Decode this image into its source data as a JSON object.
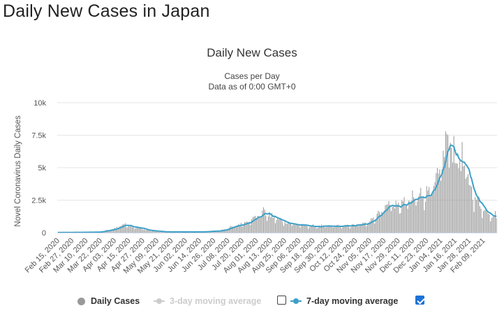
{
  "page": {
    "title": "Daily New Cases in Japan"
  },
  "chart_data": {
    "type": "bar",
    "title": "Daily New Cases",
    "subtitle": "Cases per Day",
    "subtitle2": "Data as of 0:00 GMT+0",
    "ylabel": "Novel Coronavirus Daily Cases",
    "xlabel": "",
    "ylim": [
      0,
      10000
    ],
    "yticks": [
      0,
      2500,
      5000,
      7500,
      10000
    ],
    "ytick_labels": [
      "0",
      "2.5k",
      "5k",
      "7.5k",
      "10k"
    ],
    "grid": "horizontal",
    "start_date": "2020-02-15",
    "end_date": "2021-02-20",
    "xtick_labels": [
      "Feb 15, 2020",
      "Feb 27, 2020",
      "Mar 10, 2020",
      "Mar 22, 2020",
      "Apr 03, 2020",
      "Apr 15, 2020",
      "Apr 27, 2020",
      "May 09, 2020",
      "May 21, 2020",
      "Jun 02, 2020",
      "Jun 14, 2020",
      "Jun 26, 2020",
      "Jul 08, 2020",
      "Jul 20, 2020",
      "Aug 01, 2020",
      "Aug 13, 2020",
      "Aug 25, 2020",
      "Sep 06, 2020",
      "Sep 18, 2020",
      "Sep 30, 2020",
      "Oct 12, 2020",
      "Oct 24, 2020",
      "Nov 05, 2020",
      "Nov 17, 2020",
      "Nov 29, 2020",
      "Dec 11, 2020",
      "Dec 23, 2020",
      "Jan 04, 2021",
      "Jan 16, 2021",
      "Jan 28, 2021",
      "Feb 09, 2021"
    ],
    "daily_cases_keyframes": [
      [
        "2020-02-15",
        10
      ],
      [
        "2020-03-01",
        20
      ],
      [
        "2020-03-20",
        45
      ],
      [
        "2020-04-01",
        250
      ],
      [
        "2020-04-11",
        650
      ],
      [
        "2020-04-20",
        450
      ],
      [
        "2020-05-01",
        180
      ],
      [
        "2020-05-15",
        60
      ],
      [
        "2020-06-15",
        60
      ],
      [
        "2020-07-01",
        150
      ],
      [
        "2020-07-20",
        700
      ],
      [
        "2020-08-03",
        1350
      ],
      [
        "2020-08-07",
        1550
      ],
      [
        "2020-08-20",
        1000
      ],
      [
        "2020-09-01",
        650
      ],
      [
        "2020-09-20",
        480
      ],
      [
        "2020-10-15",
        520
      ],
      [
        "2020-10-31",
        650
      ],
      [
        "2020-11-10",
        1300
      ],
      [
        "2020-11-20",
        2200
      ],
      [
        "2020-12-01",
        2100
      ],
      [
        "2020-12-15",
        2700
      ],
      [
        "2020-12-28",
        3500
      ],
      [
        "2021-01-04",
        4500
      ],
      [
        "2021-01-08",
        7400
      ],
      [
        "2021-01-15",
        6300
      ],
      [
        "2021-01-22",
        5500
      ],
      [
        "2021-01-31",
        3000
      ],
      [
        "2021-02-10",
        1700
      ],
      [
        "2021-02-20",
        1300
      ]
    ],
    "series": [
      {
        "name": "Daily Cases",
        "color": "#999999",
        "visible": true
      },
      {
        "name": "3-day moving average",
        "color": "#cccccc",
        "visible": false
      },
      {
        "name": "7-day moving average",
        "color": "#3ca0c8",
        "visible": true
      }
    ]
  },
  "legend": {
    "daily_label": "Daily Cases",
    "ma3_label": "3-day moving average",
    "ma7_label": "7-day moving average",
    "ma3_checked": false,
    "ma7_checked": true
  }
}
